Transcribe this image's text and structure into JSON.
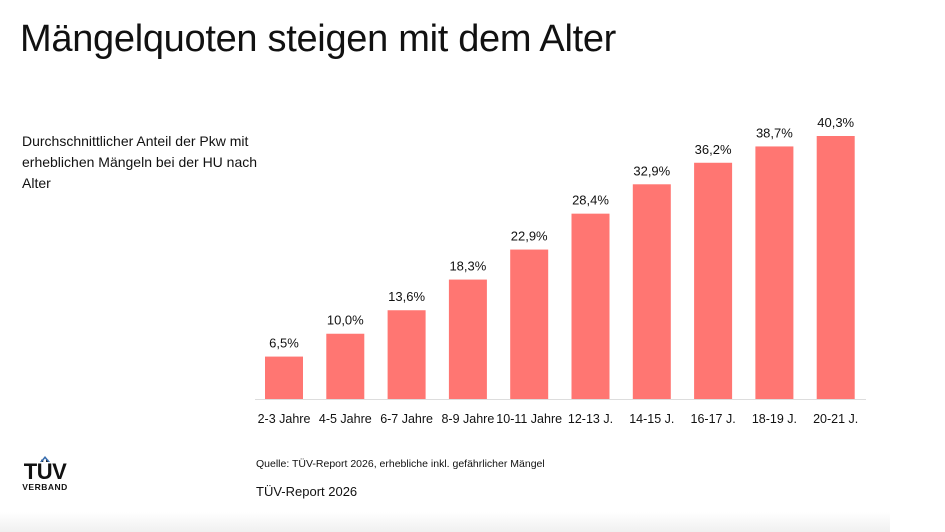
{
  "title": "Mängelquoten steigen mit dem Alter",
  "subtitle": "Durchschnittlicher Anteil der Pkw mit erheblichen Mängeln bei der HU nach Alter",
  "source": "Quelle: TÜV-Report 2026, erhebliche inkl. gefährlicher Mängel",
  "report": "TÜV-Report 2026",
  "logo": {
    "text": "TÜV",
    "subtext": "VERBAND",
    "accent": "#3a6fb0"
  },
  "chart_data": {
    "type": "bar",
    "categories": [
      "2-3 Jahre",
      "4-5 Jahre",
      "6-7 Jahre",
      "8-9 Jahre",
      "10-11 Jahre",
      "12-13 J.",
      "14-15 J.",
      "16-17 J.",
      "18-19 J.",
      "20-21 J."
    ],
    "values": [
      6.5,
      10.0,
      13.6,
      18.3,
      22.9,
      28.4,
      32.9,
      36.2,
      38.7,
      40.3
    ],
    "labels": [
      "6,5%",
      "10,0%",
      "13,6%",
      "18,3%",
      "22,9%",
      "28,4%",
      "32,9%",
      "36,2%",
      "38,7%",
      "40,3%"
    ],
    "unit": "%",
    "ylim": [
      0,
      40.3
    ],
    "color": "#ff7672",
    "grid": false,
    "legend": "none"
  }
}
